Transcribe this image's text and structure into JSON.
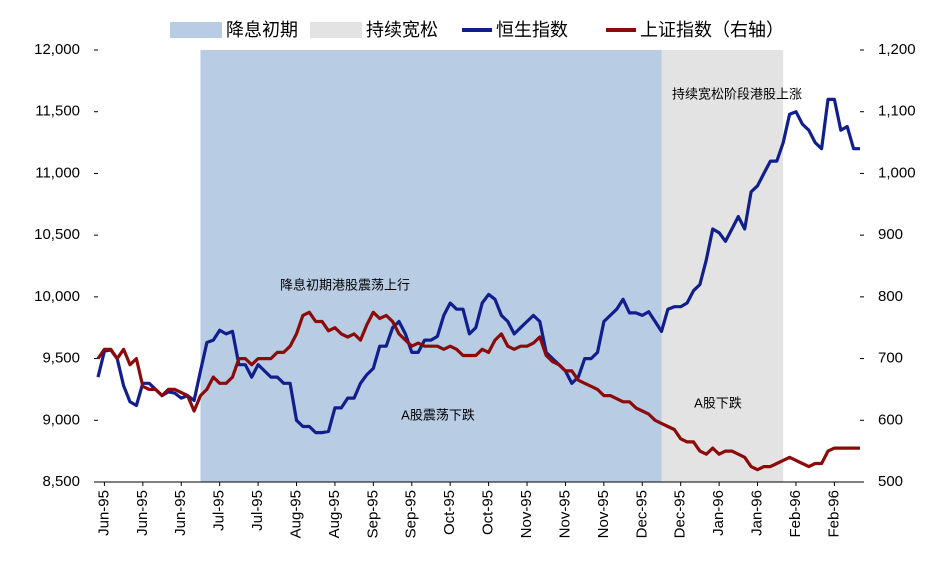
{
  "chart_data": {
    "type": "line",
    "shaded_periods": [
      {
        "name": "降息初期",
        "color": "#b8cce4",
        "start": 16,
        "end": 88
      },
      {
        "name": "持续宽松",
        "color": "#e3e3e3",
        "start": 88,
        "end": 107
      }
    ],
    "categories": [
      null,
      "Jun-95",
      null,
      null,
      null,
      null,
      null,
      "Jun-95",
      null,
      null,
      null,
      null,
      null,
      "Jun-95",
      null,
      null,
      null,
      null,
      null,
      "Jul-95",
      null,
      null,
      null,
      null,
      null,
      "Jul-95",
      null,
      null,
      null,
      null,
      null,
      "Aug-95",
      null,
      null,
      null,
      null,
      null,
      "Aug-95",
      null,
      null,
      null,
      null,
      null,
      "Sep-95",
      null,
      null,
      null,
      null,
      null,
      "Sep-95",
      null,
      null,
      null,
      null,
      null,
      "Oct-95",
      null,
      null,
      null,
      null,
      null,
      "Oct-95",
      null,
      null,
      null,
      null,
      null,
      "Nov-95",
      null,
      null,
      null,
      null,
      null,
      "Nov-95",
      null,
      null,
      null,
      null,
      null,
      "Nov-95",
      null,
      null,
      null,
      null,
      null,
      "Dec-95",
      null,
      null,
      null,
      null,
      null,
      "Dec-95",
      null,
      null,
      null,
      null,
      null,
      "Jan-96",
      null,
      null,
      null,
      null,
      null,
      "Jan-96",
      null,
      null,
      null,
      null,
      null,
      "Feb-96",
      null,
      null,
      null,
      null,
      null,
      "Feb-96",
      null,
      null,
      null,
      null
    ],
    "series": [
      {
        "name": "恒生指数",
        "color": "#101f8c",
        "values": [
          9350,
          9560,
          9570,
          9500,
          9280,
          9150,
          9120,
          9300,
          9300,
          9250,
          9200,
          9230,
          9220,
          9180,
          9200,
          9160,
          9400,
          9630,
          9650,
          9730,
          9700,
          9720,
          9450,
          9450,
          9350,
          9450,
          9400,
          9350,
          9350,
          9300,
          9300,
          9000,
          8950,
          8950,
          8900,
          8900,
          8910,
          9100,
          9100,
          9180,
          9180,
          9300,
          9370,
          9420,
          9600,
          9600,
          9750,
          9800,
          9700,
          9550,
          9550,
          9650,
          9650,
          9680,
          9850,
          9950,
          9900,
          9900,
          9700,
          9750,
          9950,
          10020,
          9980,
          9850,
          9800,
          9700,
          9750,
          9800,
          9850,
          9800,
          9550,
          9500,
          9450,
          9400,
          9300,
          9350,
          9500,
          9500,
          9550,
          9800,
          9850,
          9900,
          9980,
          9870,
          9870,
          9850,
          9880,
          9800,
          9720,
          9900,
          9920,
          9920,
          9950,
          10050,
          10100,
          10300,
          10550,
          10520,
          10450,
          10550,
          10650,
          10550,
          10850,
          10900,
          11000,
          11100,
          11100,
          11250,
          11480,
          11500,
          11400,
          11350,
          11250,
          11200,
          11600,
          11600,
          11350,
          11380,
          11200,
          11200
        ]
      },
      {
        "name": "上证指数（右轴）",
        "color": "#8b0a0a",
        "axis": "y2",
        "values": [
          700,
          715,
          715,
          700,
          715,
          690,
          700,
          655,
          650,
          650,
          640,
          650,
          650,
          645,
          640,
          615,
          640,
          650,
          670,
          660,
          660,
          670,
          700,
          700,
          690,
          700,
          700,
          700,
          710,
          710,
          720,
          740,
          770,
          775,
          760,
          760,
          745,
          750,
          740,
          735,
          740,
          730,
          755,
          775,
          765,
          770,
          760,
          740,
          730,
          720,
          725,
          720,
          720,
          720,
          715,
          720,
          715,
          705,
          705,
          705,
          715,
          710,
          730,
          740,
          720,
          715,
          720,
          720,
          725,
          735,
          705,
          695,
          690,
          680,
          680,
          665,
          660,
          655,
          650,
          640,
          640,
          635,
          630,
          630,
          620,
          615,
          610,
          600,
          595,
          590,
          585,
          570,
          565,
          565,
          550,
          545,
          555,
          545,
          550,
          550,
          545,
          540,
          525,
          520,
          525,
          525,
          530,
          535,
          540,
          535,
          530,
          525,
          530,
          530,
          550,
          555,
          555,
          555,
          555,
          555
        ]
      }
    ],
    "ylim": [
      8500,
      12000
    ],
    "yticks": [
      {
        "value": 8500,
        "label": "8,500"
      },
      {
        "value": 9000,
        "label": "9,000"
      },
      {
        "value": 9500,
        "label": "9,500"
      },
      {
        "value": 10000,
        "label": "10,000"
      },
      {
        "value": 10500,
        "label": "10,500"
      },
      {
        "value": 11000,
        "label": "11,000"
      },
      {
        "value": 11500,
        "label": "11,500"
      },
      {
        "value": 12000,
        "label": "12,000"
      }
    ],
    "y2lim": [
      500,
      1200
    ],
    "y2ticks": [
      500,
      600,
      700,
      800,
      900,
      {
        "value": 1000,
        "label": "1,000"
      },
      {
        "value": 1100,
        "label": "1,100"
      },
      {
        "value": 1200,
        "label": "1,200"
      }
    ],
    "annotations": [
      "降息初期港股震荡上行",
      "A股震荡下跌",
      "持续宽松阶段港股上涨",
      "A股下跌"
    ],
    "legend": "top"
  }
}
